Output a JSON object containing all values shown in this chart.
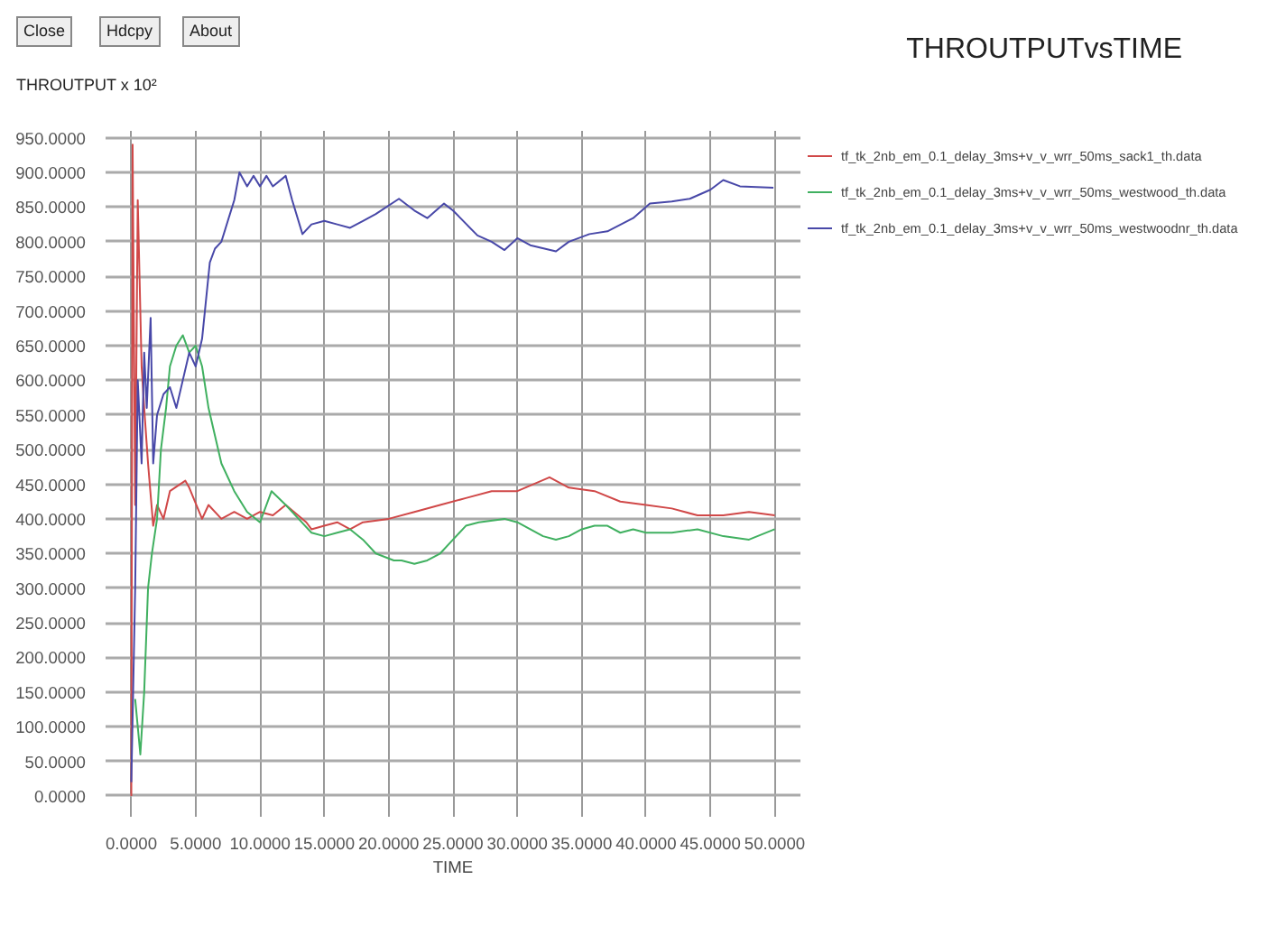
{
  "chart_data": {
    "type": "line",
    "title": "THROUTPUTvsTIME",
    "xlabel": "TIME",
    "ylabel": "THROUTPUT x 10²",
    "annotations": [
      "Close",
      "Hdcpy",
      "About"
    ],
    "xlim": [
      -2,
      52
    ],
    "ylim": [
      -30,
      960
    ],
    "xticks": [
      {
        "value": 0,
        "label": "0.0000"
      },
      {
        "value": 5,
        "label": "5.0000"
      },
      {
        "value": 10,
        "label": "10.0000"
      },
      {
        "value": 15,
        "label": "15.0000"
      },
      {
        "value": 20,
        "label": "20.0000"
      },
      {
        "value": 25,
        "label": "25.0000"
      },
      {
        "value": 30,
        "label": "30.0000"
      },
      {
        "value": 35,
        "label": "35.0000"
      },
      {
        "value": 40,
        "label": "40.0000"
      },
      {
        "value": 45,
        "label": "45.0000"
      },
      {
        "value": 50,
        "label": "50.0000"
      }
    ],
    "yticks": [
      {
        "value": 0,
        "label": "0.0000"
      },
      {
        "value": 50,
        "label": "50.0000"
      },
      {
        "value": 100,
        "label": "100.0000"
      },
      {
        "value": 150,
        "label": "150.0000"
      },
      {
        "value": 200,
        "label": "200.0000"
      },
      {
        "value": 250,
        "label": "250.0000"
      },
      {
        "value": 300,
        "label": "300.0000"
      },
      {
        "value": 350,
        "label": "350.0000"
      },
      {
        "value": 400,
        "label": "400.0000"
      },
      {
        "value": 450,
        "label": "450.0000"
      },
      {
        "value": 500,
        "label": "500.0000"
      },
      {
        "value": 550,
        "label": "550.0000"
      },
      {
        "value": 600,
        "label": "600.0000"
      },
      {
        "value": 650,
        "label": "650.0000"
      },
      {
        "value": 700,
        "label": "700.0000"
      },
      {
        "value": 750,
        "label": "750.0000"
      },
      {
        "value": 800,
        "label": "800.0000"
      },
      {
        "value": 850,
        "label": "850.0000"
      },
      {
        "value": 900,
        "label": "900.0000"
      },
      {
        "value": 950,
        "label": "950.0000"
      }
    ],
    "grid": true,
    "legend": "top right",
    "marker": "none",
    "line_style": "solid",
    "series": [
      {
        "name": "tf_tk_2nb_em_0.1_delay_3ms+v_v_wrr_50ms_sack1_th.data",
        "color": "#d04848",
        "x": [
          0.0,
          0.1,
          0.3,
          0.5,
          0.8,
          1.0,
          1.3,
          1.7,
          2.0,
          2.5,
          3.0,
          4.2,
          4.5,
          5.5,
          6,
          7,
          8,
          9,
          10,
          11,
          12,
          13.6,
          14,
          15,
          16,
          17,
          18,
          20,
          22,
          24,
          26,
          28,
          30,
          32.5,
          34,
          36,
          38,
          40,
          42,
          44,
          46,
          48,
          50
        ],
        "values": [
          0,
          940,
          420,
          860,
          620,
          560,
          480,
          390,
          420,
          400,
          440,
          455,
          445,
          400,
          420,
          400,
          410,
          400,
          410,
          405,
          420,
          395,
          385,
          390,
          395,
          385,
          395,
          400,
          410,
          420,
          430,
          440,
          440,
          460,
          445,
          440,
          425,
          420,
          415,
          405,
          405,
          410,
          405
        ]
      },
      {
        "name": "tf_tk_2nb_em_0.1_delay_3ms+v_v_wrr_50ms_westwood_th.data",
        "color": "#40b060",
        "x": [
          0.3,
          0.5,
          0.7,
          1.0,
          1.3,
          1.6,
          2.0,
          2.3,
          2.7,
          3.0,
          3.5,
          4.0,
          4.5,
          5.0,
          5.5,
          6,
          6.5,
          7,
          8,
          9,
          10,
          10.9,
          12,
          13,
          14,
          15,
          16,
          17,
          18,
          19,
          20.4,
          21,
          22,
          23,
          24,
          25,
          26,
          27,
          29,
          30,
          31,
          32,
          33,
          34,
          35,
          36,
          37,
          38,
          39,
          40,
          42,
          44,
          46,
          48,
          50
        ],
        "values": [
          140,
          100,
          60,
          150,
          300,
          350,
          400,
          500,
          560,
          620,
          650,
          665,
          640,
          650,
          620,
          560,
          520,
          480,
          440,
          410,
          395,
          440,
          420,
          400,
          380,
          375,
          380,
          385,
          370,
          350,
          340,
          340,
          335,
          340,
          350,
          370,
          390,
          395,
          400,
          395,
          385,
          375,
          370,
          375,
          385,
          390,
          390,
          380,
          385,
          380,
          380,
          385,
          375,
          370,
          385
        ]
      },
      {
        "name": "tf_tk_2nb_em_0.1_delay_3ms+v_v_wrr_50ms_westwoodnr_th.data",
        "color": "#4848a8",
        "x": [
          0.0,
          0.3,
          0.5,
          0.8,
          1.0,
          1.2,
          1.5,
          1.7,
          2.0,
          2.5,
          3.0,
          3.5,
          4.0,
          4.5,
          5.0,
          5.5,
          6.1,
          6.5,
          7.0,
          7.5,
          8.0,
          8.4,
          9.0,
          9.5,
          10,
          10.5,
          11,
          12,
          12.5,
          13.3,
          14,
          15,
          16,
          17,
          18,
          19,
          20.8,
          22,
          23,
          24.3,
          25,
          26.9,
          28,
          29,
          30,
          31,
          33,
          34,
          35.6,
          37,
          39,
          40.3,
          42,
          43.4,
          45,
          46,
          47.3,
          49.9
        ],
        "values": [
          20,
          300,
          600,
          480,
          640,
          560,
          690,
          480,
          550,
          580,
          590,
          560,
          600,
          640,
          620,
          660,
          770,
          790,
          800,
          830,
          860,
          900,
          880,
          895,
          880,
          895,
          880,
          895,
          860,
          811,
          825,
          830,
          825,
          820,
          830,
          840,
          862,
          845,
          834,
          855,
          845,
          809,
          800,
          788,
          805,
          795,
          786,
          800,
          811,
          815,
          834,
          855,
          858,
          862,
          875,
          889,
          880,
          878
        ]
      }
    ]
  }
}
